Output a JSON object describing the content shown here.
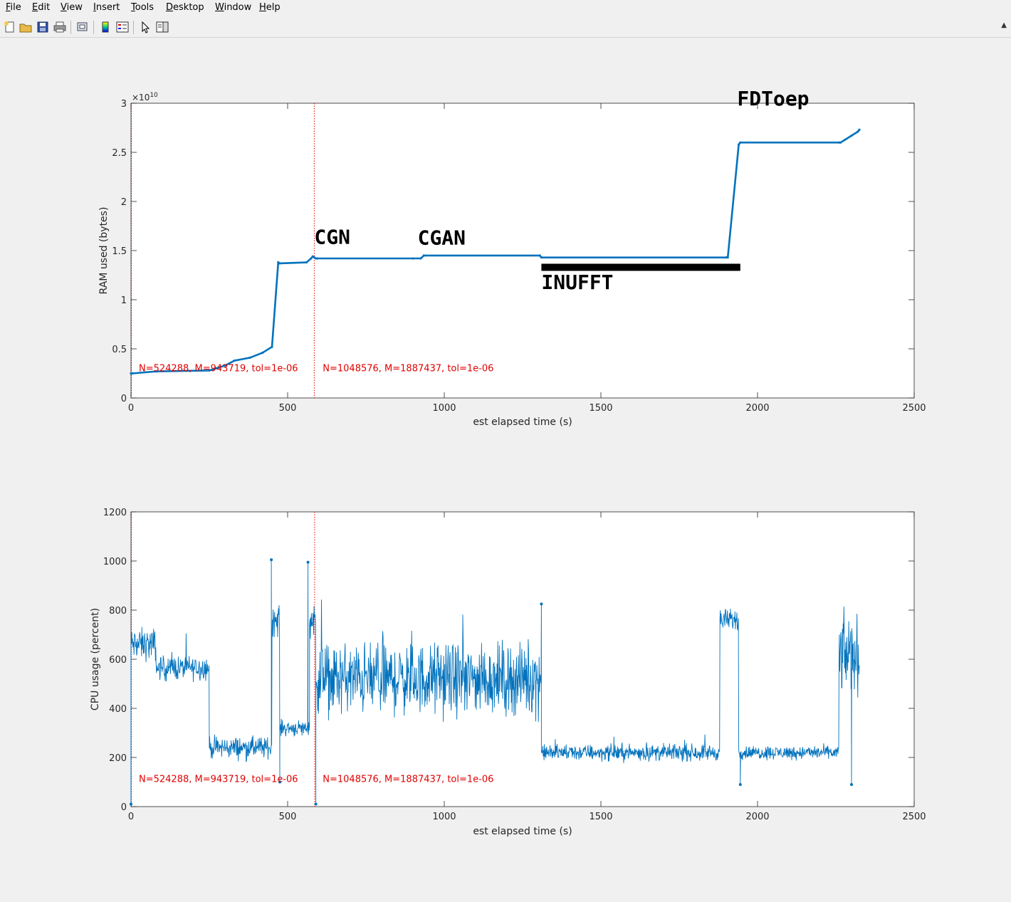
{
  "menubar": {
    "items": [
      {
        "label": "File",
        "key": "F"
      },
      {
        "label": "Edit",
        "key": "E"
      },
      {
        "label": "View",
        "key": "V"
      },
      {
        "label": "Insert",
        "key": "I"
      },
      {
        "label": "Tools",
        "key": "T"
      },
      {
        "label": "Desktop",
        "key": "D"
      },
      {
        "label": "Window",
        "key": "W"
      },
      {
        "label": "Help",
        "key": "H"
      }
    ]
  },
  "toolbar": {
    "buttons": [
      "new-figure-icon",
      "open-file-icon",
      "save-icon",
      "print-icon",
      "link-icon",
      "colorbar-icon",
      "legend-icon",
      "edit-plot-arrow-icon",
      "property-editor-icon"
    ]
  },
  "colors": {
    "series": "#0072bd",
    "annotation": "#e00000",
    "marker_text": "#000000"
  },
  "chart_data": [
    {
      "type": "line",
      "xlabel": "est elapsed time (s)",
      "ylabel": "RAM used (bytes)",
      "exponent_label": "×10",
      "exponent_power": "10",
      "xlim": [
        0,
        2500
      ],
      "ylim": [
        0,
        3
      ],
      "xticks": [
        "0",
        "500",
        "1000",
        "1500",
        "2000",
        "2500"
      ],
      "yticks": [
        "0",
        "0.5",
        "1",
        "1.5",
        "2",
        "2.5",
        "3"
      ],
      "grid": false,
      "series": [
        {
          "x": [
            0,
            5,
            80,
            250,
            300,
            330,
            380,
            420,
            450,
            470,
            475,
            560,
            575,
            580,
            585,
            590,
            595,
            900,
            925,
            935,
            1305,
            1310,
            1900,
            1905,
            1940,
            1945,
            2260,
            2265,
            2280,
            2300,
            2320,
            2325
          ],
          "y": [
            0.25,
            0.25,
            0.27,
            0.28,
            0.33,
            0.38,
            0.41,
            0.46,
            0.52,
            1.38,
            1.37,
            1.38,
            1.42,
            1.44,
            1.43,
            1.42,
            1.42,
            1.42,
            1.42,
            1.45,
            1.45,
            1.43,
            1.43,
            1.43,
            2.58,
            2.6,
            2.6,
            2.6,
            2.63,
            2.67,
            2.71,
            2.73
          ]
        }
      ],
      "annotations": [
        {
          "text": "CGN",
          "x": 585,
          "y": 1.57
        },
        {
          "text": "CGAN",
          "x": 915,
          "y": 1.56
        },
        {
          "text": "INUFFT",
          "x": 1310,
          "y": 1.11
        },
        {
          "text": "FDToep",
          "x": 1935,
          "y": 2.98
        },
        {
          "text": "N=524288, M=943719, tol=1e-06",
          "x": 25,
          "y": 0.27
        },
        {
          "text": "N=1048576, M=1887437, tol=1e-06",
          "x": 612,
          "y": 0.27
        }
      ],
      "bar": {
        "x_start": 1310,
        "x_end": 1945,
        "y": 1.33
      },
      "vlines": [
        0,
        585
      ]
    },
    {
      "type": "line",
      "xlabel": "est elapsed time (s)",
      "ylabel": "CPU usage (percent)",
      "xlim": [
        0,
        2500
      ],
      "ylim": [
        0,
        1200
      ],
      "xticks": [
        "0",
        "500",
        "1000",
        "1500",
        "2000",
        "2500"
      ],
      "yticks": [
        "0",
        "200",
        "400",
        "600",
        "800",
        "1000",
        "1200"
      ],
      "grid": false,
      "segments": [
        {
          "x_start": 0,
          "x_end": 80,
          "center": 660,
          "spread": 60
        },
        {
          "x_start": 80,
          "x_end": 250,
          "center": 565,
          "spread": 45
        },
        {
          "x_start": 250,
          "x_end": 450,
          "center": 240,
          "spread": 40
        },
        {
          "x_start": 450,
          "x_end": 475,
          "center": 760,
          "spread": 60
        },
        {
          "x_start": 475,
          "x_end": 570,
          "center": 320,
          "spread": 30
        },
        {
          "x_start": 570,
          "x_end": 590,
          "center": 760,
          "spread": 60
        },
        {
          "x_start": 590,
          "x_end": 1310,
          "center": 520,
          "spread": 130
        },
        {
          "x_start": 1310,
          "x_end": 1880,
          "center": 220,
          "spread": 30
        },
        {
          "x_start": 1880,
          "x_end": 1940,
          "center": 760,
          "spread": 40
        },
        {
          "x_start": 1940,
          "x_end": 2260,
          "center": 220,
          "spread": 25
        },
        {
          "x_start": 2260,
          "x_end": 2325,
          "center": 620,
          "spread": 140
        }
      ],
      "spikes": [
        {
          "x": 0,
          "y": 10
        },
        {
          "x": 448,
          "y": 1005
        },
        {
          "x": 565,
          "y": 995
        },
        {
          "x": 590,
          "y": 10
        },
        {
          "x": 1310,
          "y": 825
        },
        {
          "x": 475,
          "y": 100
        },
        {
          "x": 1945,
          "y": 90
        },
        {
          "x": 2300,
          "y": 90
        }
      ],
      "annotations": [
        {
          "text": "N=524288, M=943719, tol=1e-06",
          "x": 25,
          "y": 100
        },
        {
          "text": "N=1048576, M=1887437, tol=1e-06",
          "x": 612,
          "y": 100
        }
      ],
      "vlines": [
        0,
        585
      ]
    }
  ]
}
